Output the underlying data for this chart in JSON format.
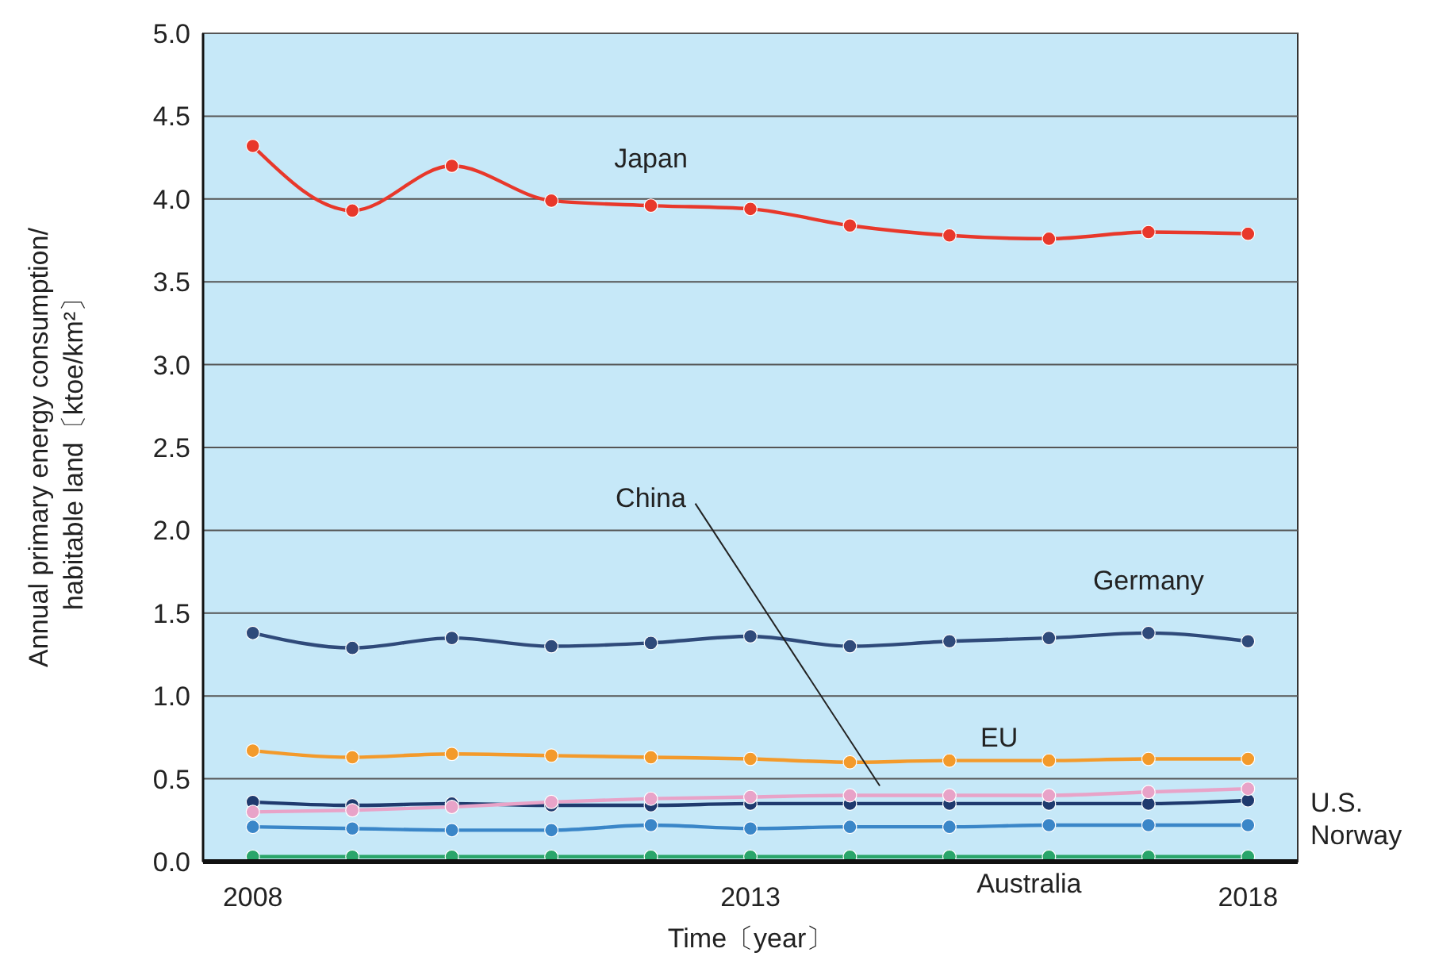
{
  "chart_data": {
    "type": "line",
    "xlabel": "Time〔year〕",
    "ylabel": "Annual primary energy consumption/\nhabitable land〔ktoe/km²〕",
    "x": [
      2008,
      2009,
      2010,
      2011,
      2012,
      2013,
      2014,
      2015,
      2016,
      2017,
      2018
    ],
    "xlim": [
      2007.5,
      2018.5
    ],
    "xticks": [
      2008,
      2013,
      2018
    ],
    "ylim": [
      0,
      5
    ],
    "yticks": [
      {
        "value": 0,
        "label": "0.0"
      },
      0.5,
      {
        "value": 1,
        "label": "1.0"
      },
      1.5,
      {
        "value": 2,
        "label": "2.0"
      },
      2.5,
      {
        "value": 3,
        "label": "3.0"
      },
      3.5,
      {
        "value": 4,
        "label": "4.0"
      },
      4.5,
      {
        "value": 5,
        "label": "5.0"
      }
    ],
    "grid": "y",
    "marker": "circle",
    "line_style": "solid",
    "series": [
      {
        "name": "Japan",
        "color": "#e8382b",
        "values": [
          4.32,
          3.93,
          4.2,
          3.99,
          3.96,
          3.94,
          3.84,
          3.78,
          3.76,
          3.8,
          3.79
        ]
      },
      {
        "name": "Germany",
        "color": "#2f4a7a",
        "values": [
          1.38,
          1.29,
          1.35,
          1.3,
          1.32,
          1.36,
          1.3,
          1.33,
          1.35,
          1.38,
          1.33
        ]
      },
      {
        "name": "EU",
        "color": "#f39a2b",
        "values": [
          0.67,
          0.63,
          0.65,
          0.64,
          0.63,
          0.62,
          0.6,
          0.61,
          0.61,
          0.62,
          0.62
        ]
      },
      {
        "name": "China",
        "color": "#e8a3c8",
        "values": [
          0.3,
          0.31,
          0.33,
          0.36,
          0.38,
          0.39,
          0.4,
          0.4,
          0.4,
          0.42,
          0.44
        ]
      },
      {
        "name": "U.S.",
        "color": "#1f3a6e",
        "values": [
          0.36,
          0.34,
          0.35,
          0.34,
          0.34,
          0.35,
          0.35,
          0.35,
          0.35,
          0.35,
          0.37
        ]
      },
      {
        "name": "Norway",
        "color": "#3a86c8",
        "values": [
          0.21,
          0.2,
          0.19,
          0.19,
          0.22,
          0.2,
          0.21,
          0.21,
          0.22,
          0.22,
          0.22
        ]
      },
      {
        "name": "Australia",
        "color": "#2aa56a",
        "values": [
          0.03,
          0.03,
          0.03,
          0.03,
          0.03,
          0.03,
          0.03,
          0.03,
          0.03,
          0.03,
          0.03
        ]
      }
    ]
  }
}
